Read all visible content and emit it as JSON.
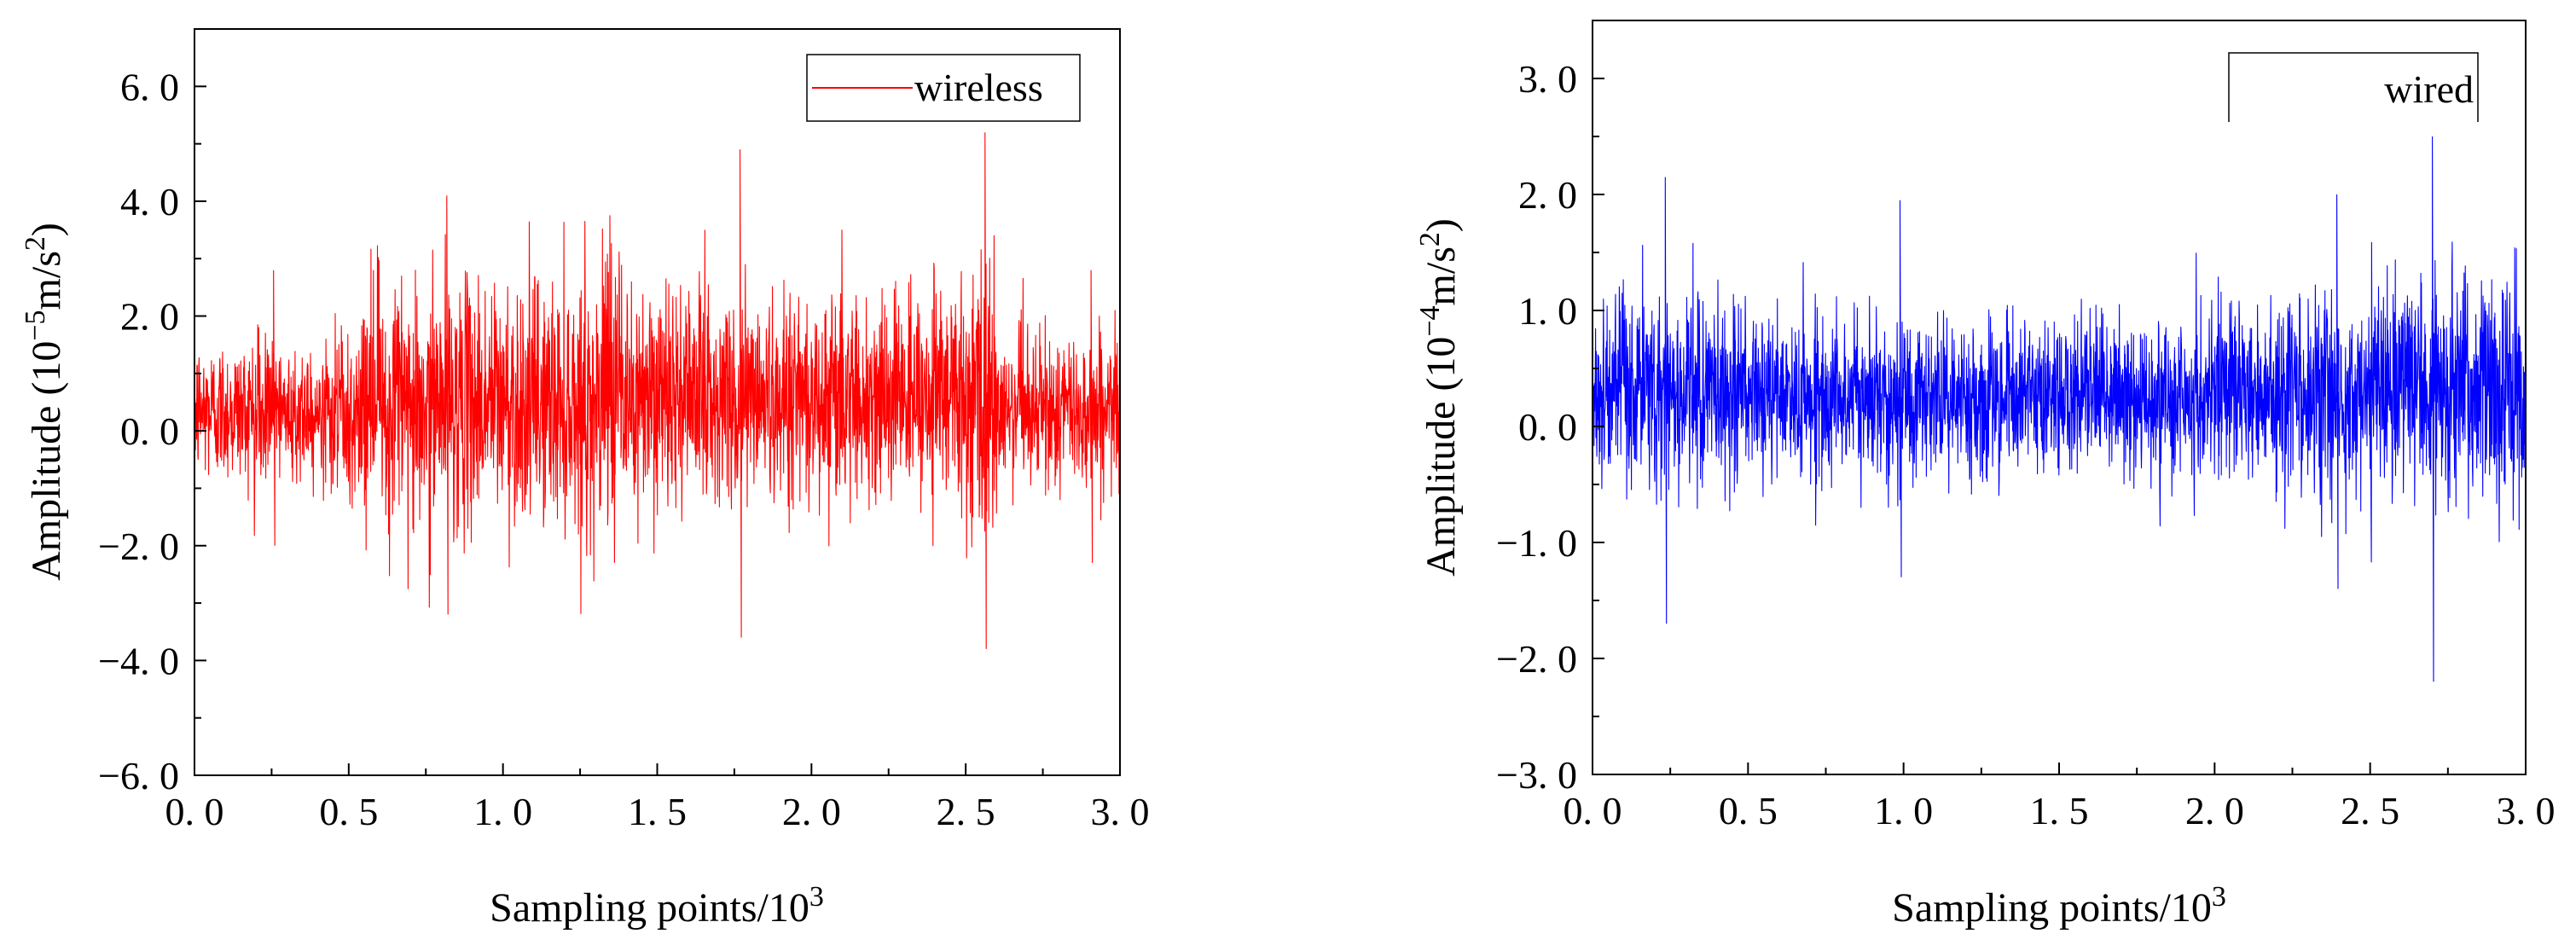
{
  "chart_data": [
    {
      "type": "line",
      "series": [
        {
          "name": "wireless",
          "color": "#ff0000",
          "x_range": [
            0,
            3000
          ],
          "point_count": 3000,
          "description_of_shape": "dense noisy vibration signal"
        }
      ],
      "xlabel": {
        "main": "Sampling points/10",
        "sup": "3"
      },
      "ylabel": {
        "pre": "Amplitude (10",
        "exp": "−5",
        "mid": "m/s",
        "exp2": "2",
        "post": ")"
      },
      "xlim": [
        0,
        3.0
      ],
      "ylim": [
        -6.0,
        7.0
      ],
      "x_ticks": [
        "0. 0",
        "0. 5",
        "1. 0",
        "1. 5",
        "2. 0",
        "2. 5",
        "3. 0"
      ],
      "y_ticks": [
        "−6. 0",
        "−4. 0",
        "−2. 0",
        "0. 0",
        "2. 0",
        "4. 0",
        "6. 0"
      ],
      "y_tick_values": [
        -6,
        -4,
        -2,
        0,
        2,
        4,
        6
      ],
      "x_tick_values": [
        0,
        0.5,
        1.0,
        1.5,
        2.0,
        2.5,
        3.0
      ],
      "envelope": {
        "segments": [
          {
            "x": [
              0.0,
              0.55
            ],
            "mean": 0.35,
            "spread": 1.1,
            "peaks": [
              2.8,
              -2.0
            ]
          },
          {
            "x": [
              0.55,
              1.4
            ],
            "mean": 0.5,
            "spread": 1.9,
            "peaks": [
              4.1,
              -3.2
            ]
          },
          {
            "x": [
              1.4,
              2.5
            ],
            "mean": 0.6,
            "spread": 1.7,
            "peaks": [
              4.9,
              -3.6
            ]
          },
          {
            "x": [
              2.5,
              2.6
            ],
            "mean": 0.4,
            "spread": 2.3,
            "peaks": [
              5.2,
              -3.8
            ]
          },
          {
            "x": [
              2.6,
              3.0
            ],
            "mean": 0.35,
            "spread": 1.2,
            "peaks": [
              2.8,
              -2.3
            ]
          }
        ]
      },
      "grid": false,
      "legend_position": "top-right"
    },
    {
      "type": "line",
      "series": [
        {
          "name": "wired",
          "color": "#0000ff",
          "x_range": [
            0,
            3000
          ],
          "point_count": 3000,
          "description_of_shape": "dense noisy vibration signal"
        }
      ],
      "xlabel": {
        "main": "Sampling points/10",
        "sup": "3"
      },
      "ylabel": {
        "pre": "Amplitude (10",
        "exp": "−4",
        "mid": "m/s",
        "exp2": "2",
        "post": ")"
      },
      "xlim": [
        0,
        3.0
      ],
      "ylim": [
        -3.0,
        3.5
      ],
      "x_ticks": [
        "0. 0",
        "0. 5",
        "1. 0",
        "1. 5",
        "2. 0",
        "2. 5",
        "3. 0"
      ],
      "y_ticks": [
        "−3. 0",
        "−2. 0",
        "−1. 0",
        "0. 0",
        "1. 0",
        "2. 0",
        "3. 0"
      ],
      "y_tick_values": [
        -3,
        -2,
        -1,
        0,
        1,
        2,
        3
      ],
      "x_tick_values": [
        0,
        0.5,
        1.0,
        1.5,
        2.0,
        2.5,
        3.0
      ],
      "envelope": {
        "segments": [
          {
            "x": [
              0.0,
              0.5
            ],
            "mean": 0.3,
            "spread": 0.75,
            "peaks": [
              2.15,
              -1.7
            ]
          },
          {
            "x": [
              0.5,
              2.0
            ],
            "mean": 0.25,
            "spread": 0.6,
            "peaks": [
              1.95,
              -1.3
            ]
          },
          {
            "x": [
              2.0,
              2.5
            ],
            "mean": 0.3,
            "spread": 0.7,
            "peaks": [
              2.0,
              -1.4
            ]
          },
          {
            "x": [
              2.5,
              3.0
            ],
            "mean": 0.3,
            "spread": 0.9,
            "peaks": [
              2.5,
              -2.2
            ]
          }
        ]
      },
      "grid": false,
      "legend_position": "top-right"
    }
  ]
}
